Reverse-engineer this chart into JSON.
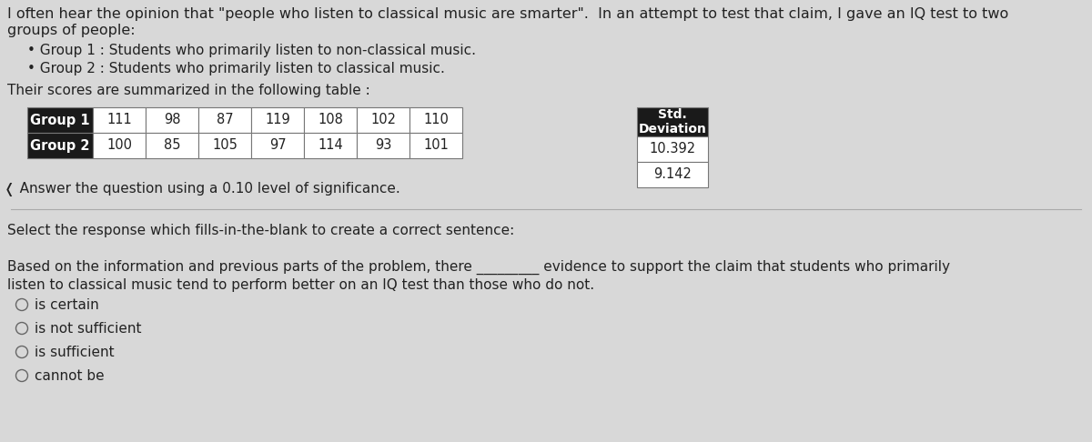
{
  "bg_color": "#d8d8d8",
  "title_line1": "I often hear the opinion that \"people who listen to classical music are smarter\".  In an attempt to test that claim, I gave an IQ test to two",
  "title_line2": "groups of people:",
  "bullet1": "Group 1 : Students who primarily listen to non-classical music.",
  "bullet2": "Group 2 : Students who primarily listen to classical music.",
  "table_intro": "Their scores are summarized in the following table :",
  "group1_label": "Group 1",
  "group2_label": "Group 2",
  "group1_data": [
    "111",
    "98",
    "87",
    "119",
    "108",
    "102",
    "110"
  ],
  "group2_data": [
    "100",
    "85",
    "105",
    "97",
    "114",
    "93",
    "101"
  ],
  "std_header_line1": "Std.",
  "std_header_line2": "Deviation",
  "std1": "10.392",
  "std2": "9.142",
  "nav_text": "❬ Answer the question using a 0.10 level of significance.",
  "select_text": "Select the response which fills-in-the-blank to create a correct sentence:",
  "sentence_line1": "Based on the information and previous parts of the problem, there _________ evidence to support the claim that students who primarily",
  "sentence_line2": "listen to classical music tend to perform better on an IQ test than those who do not.",
  "options": [
    "is certain",
    "is not sufficient",
    "is sufficient",
    "cannot be"
  ],
  "header_bg": "#1a1a1a",
  "header_fg": "#ffffff",
  "cell_bg": "#ffffff",
  "std_header_bg": "#1a1a1a",
  "std_header_fg": "#ffffff"
}
